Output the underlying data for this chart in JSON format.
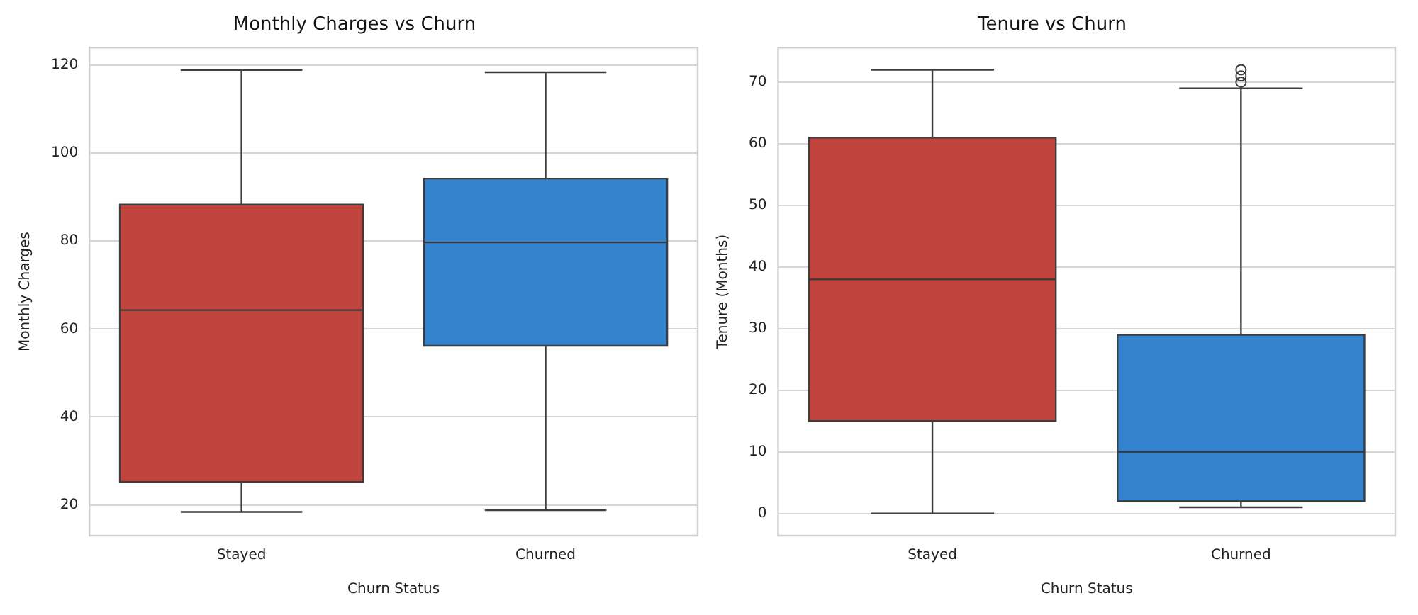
{
  "chart_data": [
    {
      "type": "box",
      "title": "Monthly Charges vs Churn",
      "xlabel": "Churn Status",
      "ylabel": "Monthly Charges",
      "categories": [
        "Stayed",
        "Churned"
      ],
      "colors": [
        "#c0443c",
        "#3383cf"
      ],
      "boxes": [
        {
          "low": 18.4,
          "q1": 25.2,
          "median": 64.3,
          "q3": 88.3,
          "high": 118.9
        },
        {
          "low": 18.8,
          "q1": 56.2,
          "median": 79.7,
          "q3": 94.2,
          "high": 118.4
        }
      ],
      "ylim": [
        13,
        124
      ],
      "yticks": [
        20,
        40,
        60,
        80,
        100,
        120
      ],
      "grid": "y"
    },
    {
      "type": "box",
      "title": "Tenure vs Churn",
      "xlabel": "Churn Status",
      "ylabel": "Tenure (Months)",
      "categories": [
        "Stayed",
        "Churned"
      ],
      "colors": [
        "#c0443c",
        "#3383cf"
      ],
      "boxes": [
        {
          "low": 0,
          "q1": 15,
          "median": 38,
          "q3": 61,
          "high": 72
        },
        {
          "low": 1,
          "q1": 2,
          "median": 10,
          "q3": 29,
          "high": 69,
          "outliers": [
            70,
            71,
            72
          ]
        }
      ],
      "ylim": [
        -3.6,
        75.6
      ],
      "yticks": [
        0,
        10,
        20,
        30,
        40,
        50,
        60,
        70
      ],
      "grid": "y"
    }
  ]
}
